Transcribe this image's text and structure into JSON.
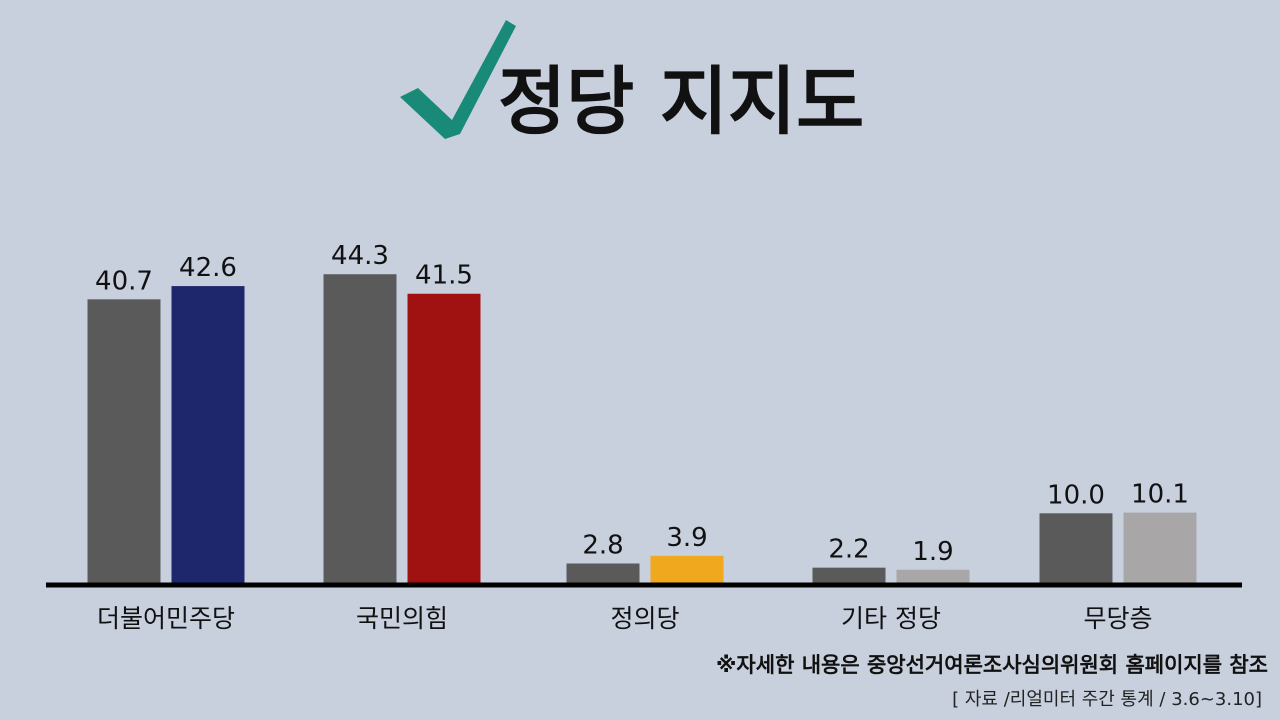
{
  "header": {
    "title": "정당 지지도",
    "check_color": "#1a8a78"
  },
  "footer": {
    "note": "※자세한 내용은 중앙선거여론조사심의위원회 홈페이지를 참조",
    "source": "[ 자료 /리얼미터 주간 통계 / 3.6~3.10]"
  },
  "chart_data": {
    "type": "bar",
    "categories": [
      "더불어민주당",
      "국민의힘",
      "정의당",
      "기타 정당",
      "무당층"
    ],
    "value_labels": [
      [
        "40.7",
        "42.6"
      ],
      [
        "44.3",
        "41.5"
      ],
      [
        "2.8",
        "3.9"
      ],
      [
        "2.2",
        "1.9"
      ],
      [
        "10.0",
        "10.1"
      ]
    ],
    "bars": [
      [
        {
          "value": 40.7,
          "color": "#5a5a5a"
        },
        {
          "value": 42.6,
          "color": "#1e266c"
        }
      ],
      [
        {
          "value": 44.3,
          "color": "#5a5a5a"
        },
        {
          "value": 41.5,
          "color": "#a01212"
        }
      ],
      [
        {
          "value": 2.8,
          "color": "#5a5a5a"
        },
        {
          "value": 3.9,
          "color": "#f0a81e"
        }
      ],
      [
        {
          "value": 2.2,
          "color": "#5a5a5a"
        },
        {
          "value": 1.9,
          "color": "#a8a6a6"
        }
      ],
      [
        {
          "value": 10.0,
          "color": "#5a5a5a"
        },
        {
          "value": 10.1,
          "color": "#a8a6a6"
        }
      ]
    ],
    "ylim": [
      0,
      50
    ],
    "grid": false,
    "legend": "none"
  }
}
